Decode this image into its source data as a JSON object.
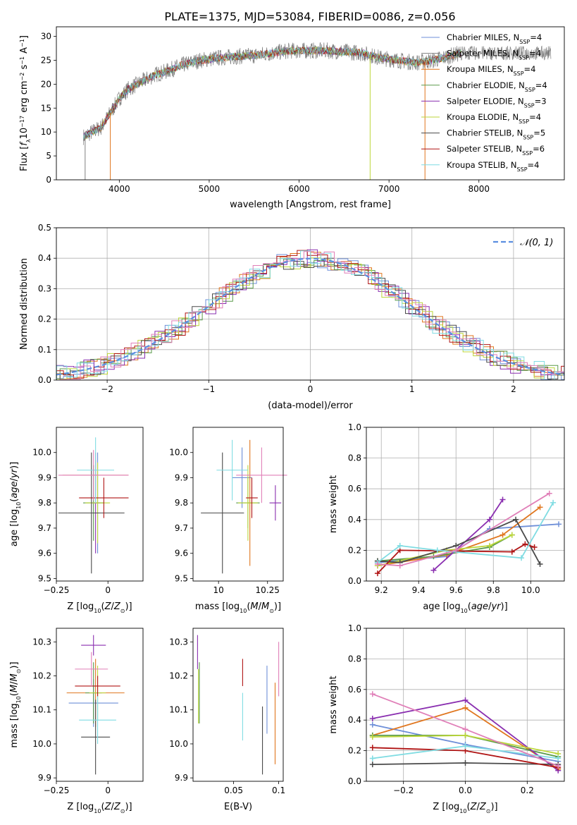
{
  "title": "PLATE=1375, MJD=53084, FIBERID=0086, z=0.056",
  "colors": {
    "blue": "#6e8fd8",
    "orange": "#e0761e",
    "green": "#5a9a4a",
    "purple": "#8a2fb0",
    "yellowgreen": "#bcd63a",
    "dark": "#4a4a4a",
    "red": "#b01414",
    "cyan": "#7fdce2",
    "pink": "#e07fb8",
    "gray": "#7f7f7f",
    "fit": "#5b8ee0"
  },
  "chart_data": [
    {
      "type": "line",
      "id": "spectrum",
      "xlabel": "wavelength [Angstrom, rest frame]",
      "ylabel": "Flux [f_λ10^-17 erg cm^-2 s^-1 A^-1]",
      "xlim": [
        3300,
        8950
      ],
      "ylim": [
        0,
        32
      ],
      "xticks": [
        4000,
        5000,
        6000,
        7000,
        8000
      ],
      "yticks": [
        0,
        5,
        10,
        15,
        20,
        25,
        30
      ],
      "grid": false,
      "legend_position": "top-right",
      "legend": [
        {
          "label": "Chabrier MILES, N_SSP=4",
          "color": "#6e8fd8"
        },
        {
          "label": "Salpeter MILES, N_SSP=4",
          "color": "#7f7f7f"
        },
        {
          "label": "Kroupa MILES, N_SSP=4",
          "color": "#e0761e"
        },
        {
          "label": "Chabrier ELODIE, N_SSP=4",
          "color": "#5a9a4a"
        },
        {
          "label": "Salpeter ELODIE, N_SSP=3",
          "color": "#8a2fb0"
        },
        {
          "label": "Kroupa ELODIE, N_SSP=4",
          "color": "#bcd63a"
        },
        {
          "label": "Chabrier STELIB, N_SSP=5",
          "color": "#4a4a4a"
        },
        {
          "label": "Salpeter STELIB, N_SSP=6",
          "color": "#b01414"
        },
        {
          "label": "Kroupa STELIB, N_SSP=4",
          "color": "#7fdce2"
        }
      ],
      "continuum": [
        [
          3600,
          9
        ],
        [
          3700,
          10
        ],
        [
          3800,
          11
        ],
        [
          3900,
          14
        ],
        [
          4000,
          17
        ],
        [
          4100,
          19
        ],
        [
          4200,
          20
        ],
        [
          4300,
          21
        ],
        [
          4400,
          22
        ],
        [
          4500,
          22.5
        ],
        [
          4700,
          24
        ],
        [
          4900,
          25
        ],
        [
          5100,
          25.5
        ],
        [
          5300,
          25.8
        ],
        [
          5500,
          26
        ],
        [
          5700,
          26.5
        ],
        [
          5900,
          27
        ],
        [
          6100,
          27
        ],
        [
          6300,
          27
        ],
        [
          6500,
          26.8
        ],
        [
          6700,
          26.5
        ],
        [
          6900,
          25.5
        ],
        [
          7100,
          25
        ],
        [
          7300,
          24.5
        ],
        [
          7500,
          25
        ],
        [
          7700,
          26
        ],
        [
          7800,
          26.5
        ]
      ],
      "spikes_to_zero": [
        3620,
        3900,
        6790,
        7400
      ]
    },
    {
      "type": "bar",
      "id": "residual-histogram",
      "xlabel": "(data-model)/error",
      "ylabel": "Normed distribution",
      "xlim": [
        -2.5,
        2.5
      ],
      "ylim": [
        0,
        0.5
      ],
      "xticks": [
        -2,
        -1,
        0,
        1,
        2
      ],
      "yticks": [
        0.0,
        0.1,
        0.2,
        0.3,
        0.4,
        0.5
      ],
      "grid": true,
      "legend_position": "top-right",
      "fit_label": "𝒩(0, 1)",
      "bin_width": 0.1
    },
    {
      "type": "scatter",
      "id": "age-vs-z",
      "xlabel": "Z [log10(Z/Z☉)]",
      "ylabel": "age  [log10(age/yr)]",
      "xlim": [
        -0.25,
        0.17
      ],
      "ylim": [
        9.49,
        10.1
      ],
      "xticks": [
        -0.25,
        0.0
      ],
      "yticks": [
        9.5,
        9.6,
        9.7,
        9.8,
        9.9,
        10.0
      ],
      "grid": false,
      "points": [
        {
          "x": -0.05,
          "y": 9.8,
          "xerr": 0.03,
          "yerr": 0.2,
          "color": "#6e8fd8"
        },
        {
          "x": -0.06,
          "y": 9.91,
          "xerr": 0.16,
          "yerr": 0.06,
          "color": "#e0761e"
        },
        {
          "x": -0.07,
          "y": 9.8,
          "xerr": 0.05,
          "yerr": 0.15,
          "color": "#5a9a4a"
        },
        {
          "x": -0.06,
          "y": 9.8,
          "xerr": 0.02,
          "yerr": 0.2,
          "color": "#8a2fb0"
        },
        {
          "x": -0.05,
          "y": 9.8,
          "xerr": 0.06,
          "yerr": 0.16,
          "color": "#bcd63a"
        },
        {
          "x": -0.08,
          "y": 9.76,
          "xerr": 0.16,
          "yerr": 0.24,
          "color": "#4a4a4a"
        },
        {
          "x": -0.02,
          "y": 9.82,
          "xerr": 0.12,
          "yerr": 0.08,
          "color": "#b01414"
        },
        {
          "x": -0.06,
          "y": 9.93,
          "xerr": 0.09,
          "yerr": 0.13,
          "color": "#7fdce2"
        },
        {
          "x": -0.07,
          "y": 9.91,
          "xerr": 0.17,
          "yerr": 0.1,
          "color": "#e07fb8"
        }
      ]
    },
    {
      "type": "scatter",
      "id": "age-vs-mass",
      "xlabel": "mass [log10(M/M☉)]",
      "ylabel": "",
      "xlim": [
        9.87,
        10.33
      ],
      "ylim": [
        9.49,
        10.1
      ],
      "xticks": [
        10.0,
        10.25
      ],
      "yticks": [
        9.5,
        9.6,
        9.7,
        9.8,
        9.9,
        10.0
      ],
      "grid": false,
      "points": [
        {
          "x": 10.12,
          "y": 9.9,
          "xerr": 0.05,
          "yerr": 0.12,
          "color": "#6e8fd8"
        },
        {
          "x": 10.16,
          "y": 9.8,
          "xerr": 0.01,
          "yerr": 0.25,
          "color": "#e0761e"
        },
        {
          "x": 10.15,
          "y": 9.8,
          "xerr": 0.06,
          "yerr": 0.1,
          "color": "#5a9a4a"
        },
        {
          "x": 10.29,
          "y": 9.8,
          "xerr": 0.03,
          "yerr": 0.07,
          "color": "#8a2fb0"
        },
        {
          "x": 10.15,
          "y": 9.8,
          "xerr": 0.05,
          "yerr": 0.15,
          "color": "#bcd63a"
        },
        {
          "x": 10.02,
          "y": 9.76,
          "xerr": 0.11,
          "yerr": 0.24,
          "color": "#4a4a4a"
        },
        {
          "x": 10.17,
          "y": 9.82,
          "xerr": 0.03,
          "yerr": 0.08,
          "color": "#b01414"
        },
        {
          "x": 10.07,
          "y": 9.93,
          "xerr": 0.08,
          "yerr": 0.12,
          "color": "#7fdce2"
        },
        {
          "x": 10.22,
          "y": 9.91,
          "xerr": 0.13,
          "yerr": 0.11,
          "color": "#e07fb8"
        }
      ]
    },
    {
      "type": "line",
      "id": "mass-weight-vs-age",
      "xlabel": "age  [log10(age/yr)]",
      "ylabel": "mass weight",
      "xlim": [
        9.12,
        10.18
      ],
      "ylim": [
        0,
        1
      ],
      "xticks": [
        9.2,
        9.4,
        9.6,
        9.8,
        10.0
      ],
      "yticks": [
        0.0,
        0.2,
        0.4,
        0.6,
        0.8,
        1.0
      ],
      "grid": true,
      "series": [
        {
          "color": "#6e8fd8",
          "x": [
            9.18,
            9.55,
            9.78,
            10.15
          ],
          "y": [
            0.12,
            0.16,
            0.34,
            0.37
          ]
        },
        {
          "color": "#e0761e",
          "x": [
            9.18,
            9.55,
            9.85,
            10.05
          ],
          "y": [
            0.1,
            0.17,
            0.3,
            0.48
          ]
        },
        {
          "color": "#5a9a4a",
          "x": [
            9.18,
            9.48,
            9.78,
            9.9
          ],
          "y": [
            0.13,
            0.16,
            0.22,
            0.3
          ]
        },
        {
          "color": "#8a2fb0",
          "x": [
            9.48,
            9.78,
            9.85
          ],
          "y": [
            0.07,
            0.4,
            0.53
          ]
        },
        {
          "color": "#bcd63a",
          "x": [
            9.18,
            9.55,
            9.78,
            9.9
          ],
          "y": [
            0.1,
            0.2,
            0.23,
            0.3
          ]
        },
        {
          "color": "#4a4a4a",
          "x": [
            9.18,
            9.3,
            9.6,
            9.92,
            10.05
          ],
          "y": [
            0.13,
            0.12,
            0.23,
            0.4,
            0.11
          ]
        },
        {
          "color": "#b01414",
          "x": [
            9.18,
            9.3,
            9.9,
            9.97,
            10.02
          ],
          "y": [
            0.05,
            0.2,
            0.19,
            0.24,
            0.22
          ]
        },
        {
          "color": "#7fdce2",
          "x": [
            9.18,
            9.3,
            9.5,
            9.95,
            10.12
          ],
          "y": [
            0.12,
            0.23,
            0.2,
            0.15,
            0.51
          ]
        },
        {
          "color": "#e07fb8",
          "x": [
            9.18,
            9.3,
            9.6,
            10.1
          ],
          "y": [
            0.11,
            0.1,
            0.2,
            0.57
          ]
        }
      ]
    },
    {
      "type": "scatter",
      "id": "mass-vs-z",
      "xlabel": "Z [log10(Z/Z☉)]",
      "ylabel": "mass [log10(M/M☉)]",
      "xlim": [
        -0.25,
        0.17
      ],
      "ylim": [
        9.89,
        10.34
      ],
      "xticks": [
        -0.25,
        0.0
      ],
      "yticks": [
        9.9,
        10.0,
        10.1,
        10.2,
        10.3
      ],
      "grid": false,
      "points": [
        {
          "x": -0.07,
          "y": 10.12,
          "xerr": 0.12,
          "yerr": 0.07,
          "color": "#6e8fd8"
        },
        {
          "x": -0.06,
          "y": 10.15,
          "xerr": 0.14,
          "yerr": 0.1,
          "color": "#e0761e"
        },
        {
          "x": -0.07,
          "y": 10.15,
          "xerr": 0.04,
          "yerr": 0.09,
          "color": "#5a9a4a"
        },
        {
          "x": -0.07,
          "y": 10.29,
          "xerr": 0.06,
          "yerr": 0.03,
          "color": "#8a2fb0"
        },
        {
          "x": -0.05,
          "y": 10.15,
          "xerr": 0.04,
          "yerr": 0.08,
          "color": "#bcd63a"
        },
        {
          "x": -0.06,
          "y": 10.02,
          "xerr": 0.07,
          "yerr": 0.11,
          "color": "#4a4a4a"
        },
        {
          "x": -0.05,
          "y": 10.17,
          "xerr": 0.11,
          "yerr": 0.03,
          "color": "#b01414"
        },
        {
          "x": -0.05,
          "y": 10.07,
          "xerr": 0.09,
          "yerr": 0.07,
          "color": "#7fdce2"
        },
        {
          "x": -0.08,
          "y": 10.22,
          "xerr": 0.08,
          "yerr": 0.05,
          "color": "#e07fb8"
        }
      ]
    },
    {
      "type": "scatter",
      "id": "mass-vs-ebv",
      "xlabel": "E(B-V)",
      "ylabel": "",
      "xlim": [
        0.005,
        0.105
      ],
      "ylim": [
        9.89,
        10.34
      ],
      "xticks": [
        0.05,
        0.1
      ],
      "yticks": [
        9.9,
        10.0,
        10.1,
        10.2,
        10.3
      ],
      "grid": false,
      "points": [
        {
          "x": 0.087,
          "y": 10.13,
          "yerr": 0.1,
          "color": "#6e8fd8"
        },
        {
          "x": 0.096,
          "y": 10.06,
          "yerr": 0.12,
          "color": "#e0761e"
        },
        {
          "x": 0.012,
          "y": 10.15,
          "yerr": 0.09,
          "color": "#5a9a4a"
        },
        {
          "x": 0.01,
          "y": 10.27,
          "yerr": 0.05,
          "color": "#8a2fb0"
        },
        {
          "x": 0.011,
          "y": 10.14,
          "yerr": 0.08,
          "color": "#bcd63a"
        },
        {
          "x": 0.082,
          "y": 10.01,
          "yerr": 0.1,
          "color": "#4a4a4a"
        },
        {
          "x": 0.06,
          "y": 10.21,
          "yerr": 0.04,
          "color": "#b01414"
        },
        {
          "x": 0.06,
          "y": 10.08,
          "yerr": 0.07,
          "color": "#7fdce2"
        },
        {
          "x": 0.1,
          "y": 10.22,
          "yerr": 0.08,
          "color": "#e07fb8"
        }
      ]
    },
    {
      "type": "line",
      "id": "mass-weight-vs-z",
      "xlabel": "Z [log10(Z/Z☉)]",
      "ylabel": "mass weight",
      "xlim": [
        -0.32,
        0.32
      ],
      "ylim": [
        0,
        1
      ],
      "xticks": [
        -0.2,
        0.0,
        0.2
      ],
      "yticks": [
        0.0,
        0.2,
        0.4,
        0.6,
        0.8,
        1.0
      ],
      "grid": true,
      "series": [
        {
          "color": "#6e8fd8",
          "x": [
            -0.3,
            0.0,
            0.3
          ],
          "y": [
            0.37,
            0.24,
            0.13
          ]
        },
        {
          "color": "#e0761e",
          "x": [
            -0.3,
            0.0,
            0.3
          ],
          "y": [
            0.3,
            0.48,
            0.08
          ]
        },
        {
          "color": "#5a9a4a",
          "x": [
            -0.3,
            0.0,
            0.3
          ],
          "y": [
            0.3,
            0.3,
            0.16
          ]
        },
        {
          "color": "#8a2fb0",
          "x": [
            -0.3,
            0.0,
            0.3
          ],
          "y": [
            0.41,
            0.53,
            0.07
          ]
        },
        {
          "color": "#bcd63a",
          "x": [
            -0.3,
            0.0,
            0.3
          ],
          "y": [
            0.29,
            0.3,
            0.18
          ]
        },
        {
          "color": "#4a4a4a",
          "x": [
            -0.3,
            0.0,
            0.3
          ],
          "y": [
            0.11,
            0.12,
            0.11
          ]
        },
        {
          "color": "#b01414",
          "x": [
            -0.3,
            0.0,
            0.3
          ],
          "y": [
            0.22,
            0.2,
            0.09
          ]
        },
        {
          "color": "#7fdce2",
          "x": [
            -0.3,
            0.0,
            0.3
          ],
          "y": [
            0.15,
            0.23,
            0.15
          ]
        },
        {
          "color": "#e07fb8",
          "x": [
            -0.3,
            0.0,
            0.3
          ],
          "y": [
            0.57,
            0.34,
            0.1
          ]
        }
      ]
    }
  ]
}
